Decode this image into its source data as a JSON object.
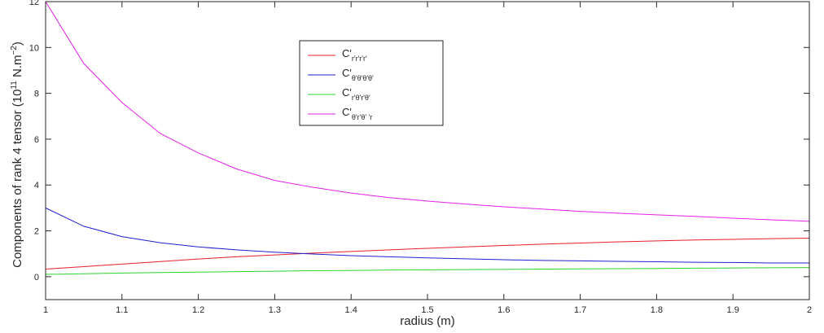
{
  "chart_data": {
    "type": "line",
    "xlabel": "radius (m)",
    "ylabel": {
      "prefix": "Components of rank 4 tensor (10",
      "exponent1": "11",
      "middle": " N.m",
      "exponent2": "−2",
      "suffix": ")"
    },
    "xlim": [
      1,
      2
    ],
    "ylim": [
      -1,
      12
    ],
    "xticks": [
      1,
      1.1,
      1.2,
      1.3,
      1.4,
      1.5,
      1.6,
      1.7,
      1.8,
      1.9,
      2
    ],
    "xtick_labels": [
      "1",
      "1.1",
      "1.2",
      "1.3",
      "1.4",
      "1.5",
      "1.6",
      "1.7",
      "1.8",
      "1.9",
      "2"
    ],
    "yticks": [
      0,
      2,
      4,
      6,
      8,
      10,
      12
    ],
    "ytick_labels": [
      "0",
      "2",
      "4",
      "6",
      "8",
      "10",
      "12"
    ],
    "grid": false,
    "legend_position": "top-center",
    "x": [
      1.0,
      1.05,
      1.1,
      1.15,
      1.2,
      1.25,
      1.3,
      1.35,
      1.4,
      1.45,
      1.5,
      1.55,
      1.6,
      1.65,
      1.7,
      1.75,
      1.8,
      1.85,
      1.9,
      1.95,
      2.0
    ],
    "series": [
      {
        "label_main": "C'",
        "label_sub": "r'r'r'r'",
        "color": "#e8202a",
        "values": [
          0.33,
          0.44,
          0.55,
          0.66,
          0.77,
          0.87,
          0.95,
          1.03,
          1.1,
          1.17,
          1.24,
          1.3,
          1.36,
          1.42,
          1.47,
          1.52,
          1.56,
          1.6,
          1.63,
          1.66,
          1.68
        ]
      },
      {
        "label_main": "C'",
        "label_sub": "θ'θ'θ'θ'",
        "color": "#1f1fcf",
        "values": [
          3.0,
          2.2,
          1.75,
          1.48,
          1.3,
          1.17,
          1.07,
          0.99,
          0.92,
          0.87,
          0.82,
          0.78,
          0.74,
          0.71,
          0.69,
          0.67,
          0.65,
          0.63,
          0.62,
          0.6,
          0.6
        ]
      },
      {
        "label_main": "C'",
        "label_sub": "r'θ'r'θ'",
        "color": "#2ed42e",
        "values": [
          0.1,
          0.13,
          0.16,
          0.18,
          0.2,
          0.22,
          0.24,
          0.26,
          0.27,
          0.29,
          0.3,
          0.31,
          0.32,
          0.33,
          0.34,
          0.35,
          0.36,
          0.37,
          0.38,
          0.39,
          0.4
        ]
      },
      {
        "label_main": "C'",
        "label_sub": "θ'r'θ' 'r",
        "color": "#e620e6",
        "values": [
          12.0,
          9.3,
          7.6,
          6.25,
          5.4,
          4.7,
          4.2,
          3.9,
          3.65,
          3.45,
          3.3,
          3.17,
          3.05,
          2.95,
          2.85,
          2.77,
          2.7,
          2.63,
          2.55,
          2.48,
          2.42
        ]
      }
    ]
  }
}
